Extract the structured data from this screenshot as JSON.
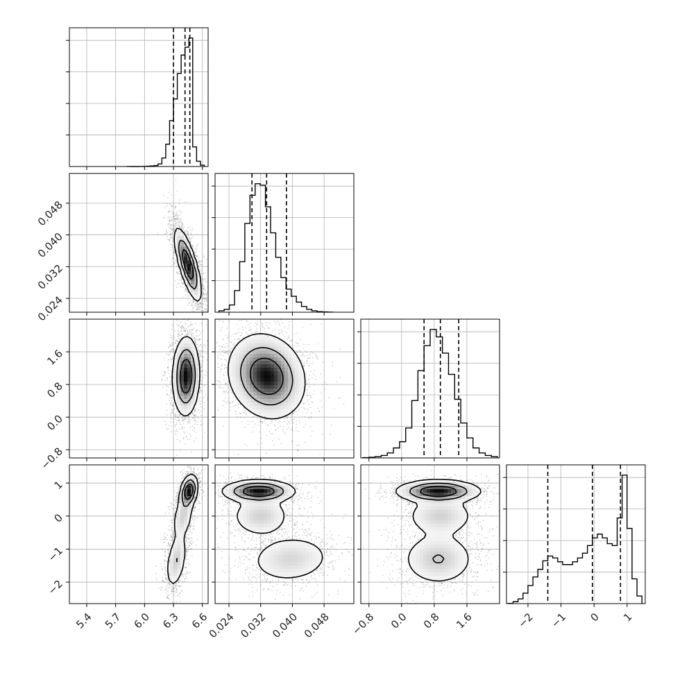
{
  "chart_data": {
    "type": "corner",
    "title": "",
    "params": [
      {
        "ticks": [
          "5.4",
          "5.7",
          "6.0",
          "6.3",
          "6.6"
        ],
        "tick_values": [
          5.4,
          5.7,
          6.0,
          6.3,
          6.6
        ],
        "range": [
          5.22,
          6.66
        ],
        "quantiles": [
          6.3,
          6.42,
          6.47
        ]
      },
      {
        "ticks": [
          "0.024",
          "0.032",
          "0.040",
          "0.048"
        ],
        "tick_values": [
          0.024,
          0.032,
          0.04,
          0.048
        ],
        "range": [
          0.0205,
          0.0555
        ],
        "quantiles": [
          0.0298,
          0.0335,
          0.0385
        ]
      },
      {
        "ticks": [
          "−0.8",
          "0.0",
          "0.8",
          "1.6"
        ],
        "tick_values": [
          -0.8,
          0.0,
          0.8,
          1.6
        ],
        "range": [
          -1.0,
          2.4
        ],
        "quantiles": [
          0.55,
          0.95,
          1.4
        ]
      },
      {
        "ticks": [
          "−2",
          "−1",
          "0",
          "1"
        ],
        "tick_values": [
          -2,
          -1,
          0,
          1
        ],
        "range": [
          -2.65,
          1.55
        ],
        "quantiles": [
          -1.4,
          -0.05,
          0.8
        ]
      }
    ],
    "histograms": [
      {
        "bins": [
          5.82,
          5.86,
          5.9,
          5.94,
          5.98,
          6.02,
          6.06,
          6.1,
          6.14,
          6.18,
          6.22,
          6.26,
          6.3,
          6.34,
          6.38,
          6.42,
          6.46,
          6.5,
          6.54,
          6.58,
          6.62
        ],
        "counts": [
          1,
          0,
          0,
          1,
          2,
          5,
          8,
          15,
          40,
          130,
          340,
          700,
          1030,
          1420,
          1700,
          1820,
          1960,
          300,
          80,
          20
        ]
      },
      {
        "bins": [
          0.0215,
          0.0228,
          0.0241,
          0.0254,
          0.0267,
          0.028,
          0.0293,
          0.0306,
          0.0319,
          0.0332,
          0.0345,
          0.0358,
          0.0371,
          0.0384,
          0.0397,
          0.041,
          0.0423,
          0.0436,
          0.0449,
          0.0462,
          0.0475,
          0.0488,
          0.0501
        ],
        "counts": [
          20,
          40,
          100,
          300,
          700,
          1230,
          1620,
          1780,
          1760,
          1460,
          1100,
          760,
          480,
          320,
          220,
          140,
          80,
          40,
          20,
          8,
          4,
          2
        ]
      },
      {
        "bins": [
          -0.95,
          -0.8,
          -0.65,
          -0.5,
          -0.35,
          -0.2,
          -0.05,
          0.1,
          0.25,
          0.4,
          0.55,
          0.7,
          0.85,
          1.0,
          1.15,
          1.3,
          1.45,
          1.6,
          1.75,
          1.9,
          2.05,
          2.2,
          2.35
        ],
        "counts": [
          5,
          10,
          20,
          40,
          80,
          160,
          260,
          480,
          920,
          1400,
          1800,
          2060,
          1940,
          1680,
          1340,
          940,
          560,
          320,
          160,
          80,
          40,
          20
        ]
      },
      {
        "bins": [
          -2.6,
          -2.45,
          -2.3,
          -2.15,
          -2.0,
          -1.85,
          -1.7,
          -1.55,
          -1.4,
          -1.25,
          -1.1,
          -0.95,
          -0.8,
          -0.65,
          -0.5,
          -0.35,
          -0.2,
          -0.05,
          0.1,
          0.25,
          0.4,
          0.55,
          0.7,
          0.85,
          1.0,
          1.15,
          1.3,
          1.45
        ],
        "counts": [
          5,
          40,
          100,
          220,
          380,
          560,
          720,
          900,
          1000,
          960,
          880,
          820,
          820,
          880,
          960,
          1060,
          1220,
          1380,
          1460,
          1380,
          1260,
          1220,
          1800,
          2700,
          1580,
          520,
          160
        ]
      }
    ],
    "pairs": [
      {
        "row": 1,
        "col": 0,
        "modes": [
          {
            "x": 6.45,
            "y": 0.0325,
            "sx": 0.06,
            "sy": 0.004,
            "rho": -0.75,
            "w": 1.0
          }
        ]
      },
      {
        "row": 2,
        "col": 0,
        "modes": [
          {
            "x": 6.43,
            "y": 1.0,
            "sx": 0.06,
            "sy": 0.42,
            "rho": 0.05,
            "w": 1.0
          }
        ]
      },
      {
        "row": 2,
        "col": 1,
        "modes": [
          {
            "x": 0.0335,
            "y": 1.0,
            "sx": 0.0042,
            "sy": 0.45,
            "rho": -0.15,
            "w": 1.0
          }
        ]
      },
      {
        "row": 3,
        "col": 0,
        "modes": [
          {
            "x": 6.46,
            "y": 0.75,
            "sx": 0.04,
            "sy": 0.22,
            "rho": 0.3,
            "w": 0.45
          },
          {
            "x": 6.4,
            "y": 0.0,
            "sx": 0.05,
            "sy": 0.35,
            "rho": 0.4,
            "w": 0.25
          },
          {
            "x": 6.33,
            "y": -1.35,
            "sx": 0.05,
            "sy": 0.4,
            "rho": 0.4,
            "w": 0.3
          }
        ]
      },
      {
        "row": 3,
        "col": 1,
        "modes": [
          {
            "x": 0.0315,
            "y": 0.75,
            "sx": 0.004,
            "sy": 0.15,
            "rho": 0.0,
            "w": 0.45
          },
          {
            "x": 0.032,
            "y": 0.0,
            "sx": 0.0035,
            "sy": 0.3,
            "rho": 0.0,
            "w": 0.22
          },
          {
            "x": 0.0395,
            "y": -1.3,
            "sx": 0.005,
            "sy": 0.35,
            "rho": 0.1,
            "w": 0.33
          }
        ]
      },
      {
        "row": 3,
        "col": 2,
        "modes": [
          {
            "x": 0.9,
            "y": 0.75,
            "sx": 0.45,
            "sy": 0.15,
            "rho": 0.0,
            "w": 0.45
          },
          {
            "x": 0.95,
            "y": 0.0,
            "sx": 0.4,
            "sy": 0.3,
            "rho": 0.0,
            "w": 0.22
          },
          {
            "x": 0.9,
            "y": -1.3,
            "sx": 0.42,
            "sy": 0.38,
            "rho": 0.0,
            "w": 0.33
          }
        ]
      }
    ],
    "grid": true,
    "legend": "none"
  }
}
